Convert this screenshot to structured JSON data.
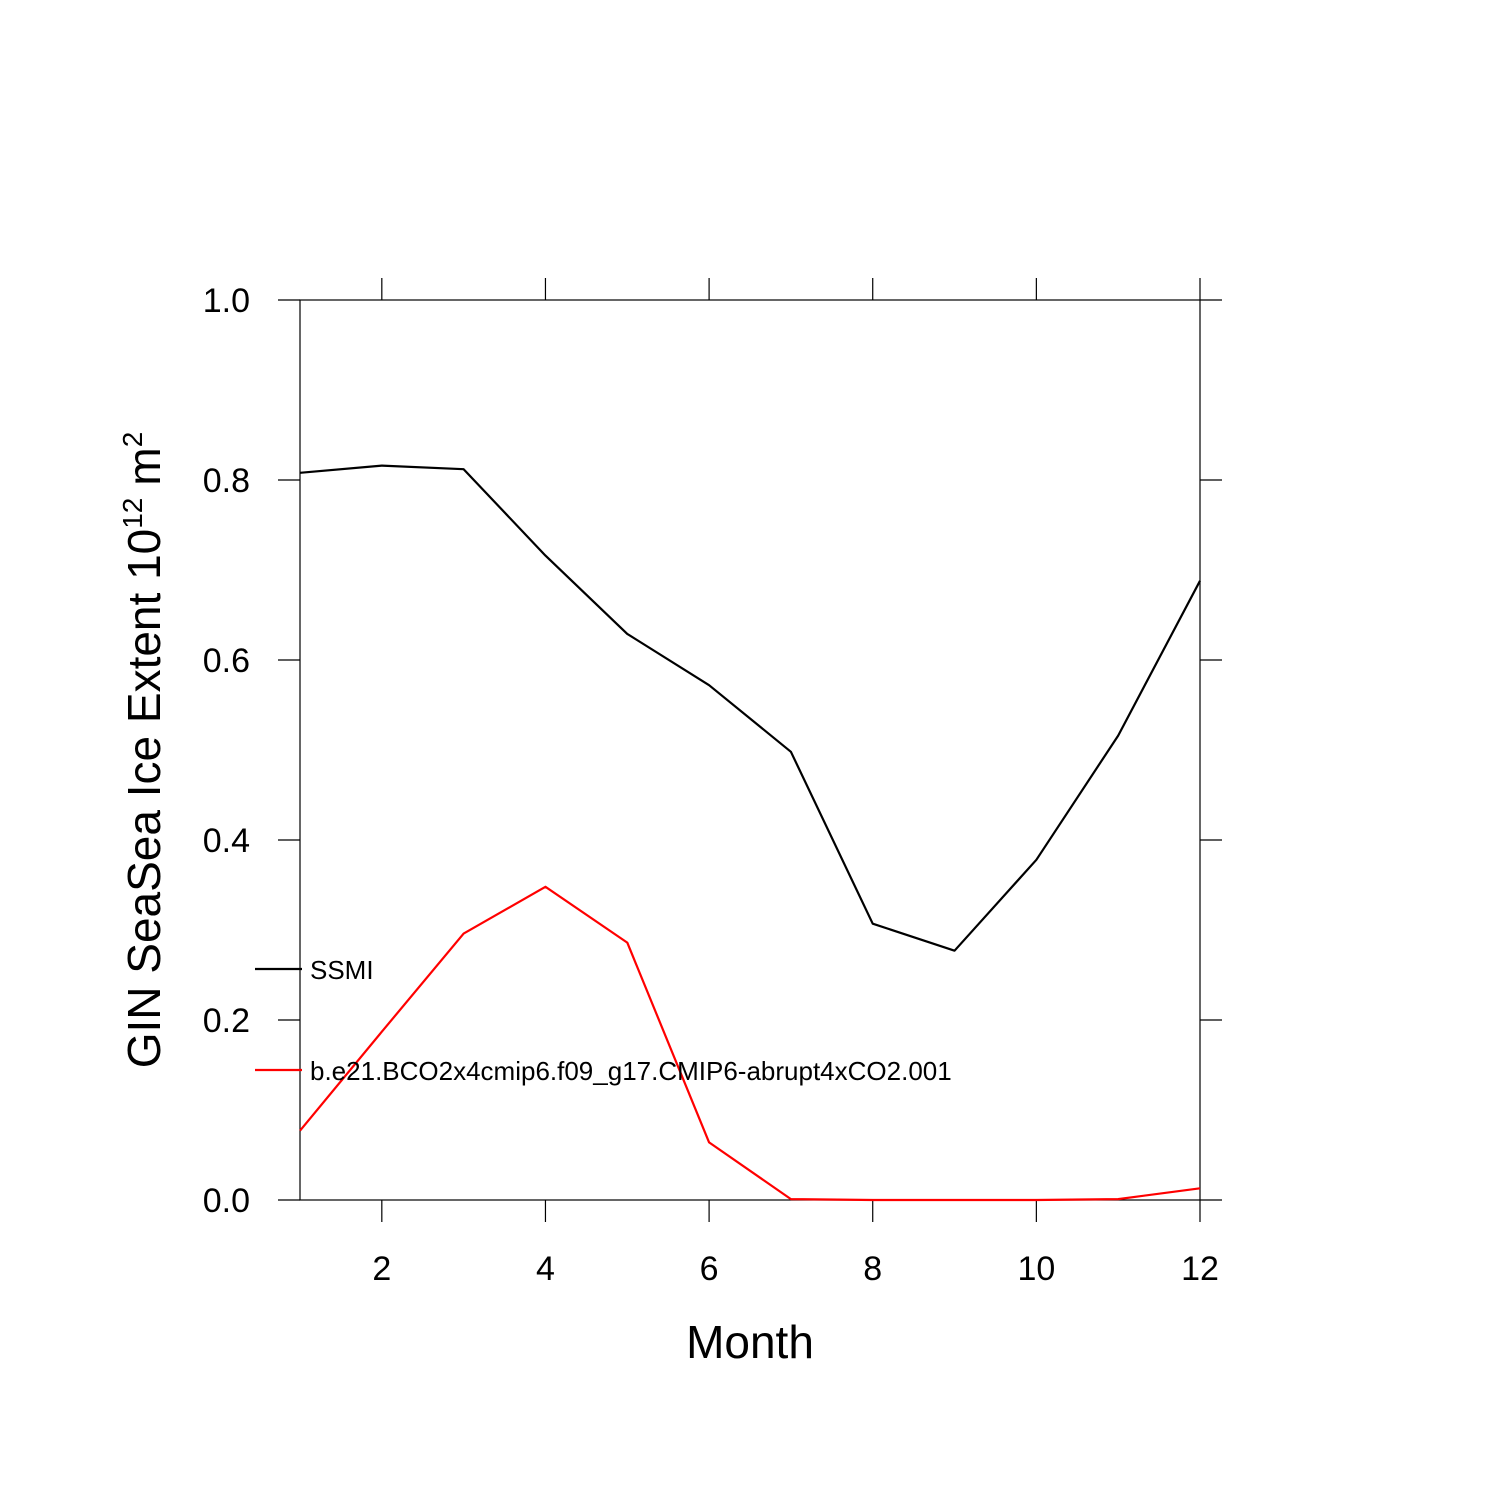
{
  "chart_data": {
    "type": "line",
    "x_label": "Month",
    "y_label": {
      "text": "GIN SeaSea Ice Extent 10",
      "exponent": "12",
      "unit": "m",
      "unit_exponent": "2"
    },
    "x": [
      1,
      2,
      3,
      4,
      5,
      6,
      7,
      8,
      9,
      10,
      11,
      12
    ],
    "series": [
      {
        "name": "SSMI",
        "color": "#000000",
        "values": [
          0.808,
          0.816,
          0.812,
          0.716,
          0.629,
          0.572,
          0.498,
          0.307,
          0.277,
          0.378,
          0.516,
          0.688
        ]
      },
      {
        "name": "b.e21.BCO2x4cmip6.f09_g17.CMIP6-abrupt4xCO2.001",
        "color": "#ff0000",
        "values": [
          0.077,
          0.187,
          0.296,
          0.348,
          0.286,
          0.064,
          0.001,
          0,
          0,
          0,
          0.001,
          0.013
        ]
      }
    ],
    "xlim": [
      1,
      12
    ],
    "xticks": [
      2,
      4,
      6,
      8,
      10,
      12
    ],
    "ylim": [
      0,
      1
    ],
    "yticks": [
      {
        "value": 0,
        "label": "0.0"
      },
      0.2,
      0.4,
      0.6,
      0.8,
      {
        "value": 1,
        "label": "1.0"
      }
    ]
  }
}
